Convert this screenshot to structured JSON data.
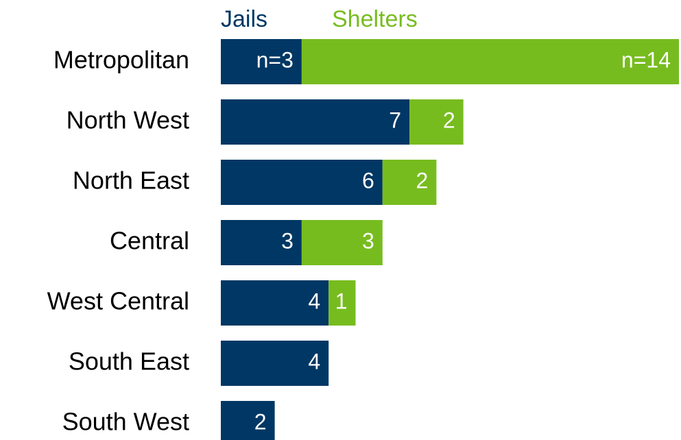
{
  "chart_data": {
    "type": "stacked-bar-horizontal",
    "categories": [
      "Metropolitan",
      "North West",
      "North East",
      "Central",
      "West Central",
      "South East",
      "South West"
    ],
    "series": [
      {
        "name": "Jails",
        "color": "#003764",
        "values": [
          3,
          7,
          6,
          3,
          4,
          4,
          2
        ],
        "value_labels": [
          "n=3",
          "7",
          "6",
          "3",
          "4",
          "4",
          "2"
        ]
      },
      {
        "name": "Shelters",
        "color": "#77bc1f",
        "values": [
          14,
          2,
          2,
          3,
          1,
          null,
          null
        ],
        "value_labels": [
          "n=14",
          "2",
          "2",
          "3",
          "1",
          null,
          null
        ]
      }
    ],
    "legend": "top"
  }
}
